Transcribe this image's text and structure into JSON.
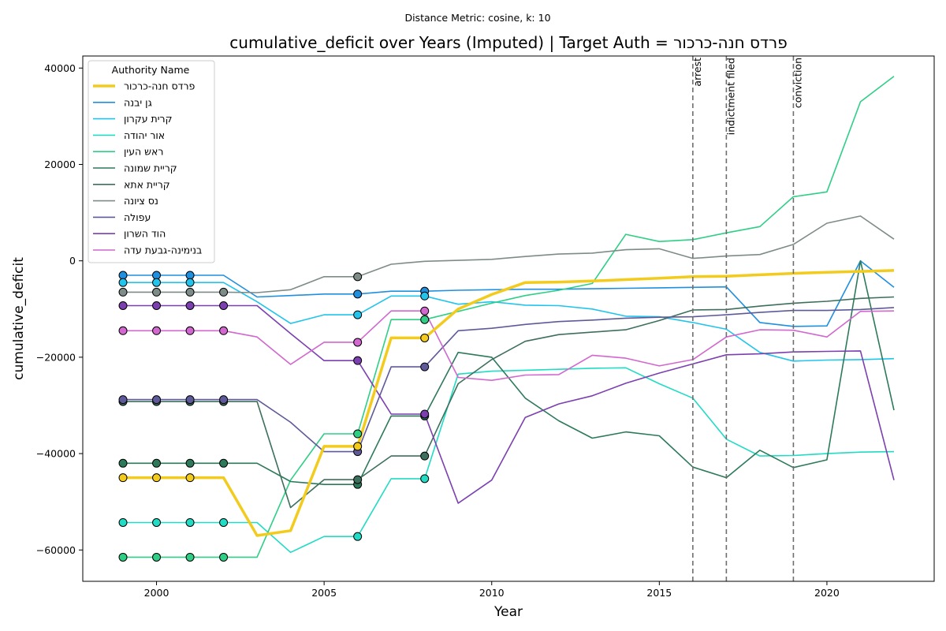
{
  "chart_data": {
    "type": "line",
    "suptitle": "Distance Metric: cosine, k: 10",
    "title": "cumulative_deficit over Years (Imputed) | Target Auth = פרדס חנה-כרכור",
    "xlabel": "Year",
    "ylabel": "cumulative_deficit",
    "xlim": [
      1997.8,
      2023.2
    ],
    "ylim": [
      -66500,
      42500
    ],
    "xticks": [
      2000,
      2005,
      2010,
      2015,
      2020
    ],
    "yticks": [
      -60000,
      -40000,
      -20000,
      0,
      20000,
      40000
    ],
    "legend_title": "Authority Name",
    "legend_placement": "top-left",
    "grid": false,
    "events": [
      {
        "x": 2016,
        "label": "arrest"
      },
      {
        "x": 2017,
        "label": "indictment filed"
      },
      {
        "x": 2019,
        "label": "conviction"
      }
    ],
    "x": [
      1999,
      2000,
      2001,
      2002,
      2003,
      2004,
      2005,
      2006,
      2007,
      2008,
      2009,
      2010,
      2011,
      2012,
      2013,
      2014,
      2015,
      2016,
      2017,
      2018,
      2019,
      2020,
      2021,
      2022
    ],
    "series": [
      {
        "name": "פרדס חנה-כרכור",
        "color": "#f2cb1d",
        "target": true,
        "values": [
          -45000,
          -45000,
          -45000,
          -45000,
          -57000,
          -56000,
          -38500,
          -38500,
          -16000,
          -16000,
          -10000,
          -7000,
          -4500,
          -4400,
          -4200,
          -3900,
          -3600,
          -3300,
          -3200,
          -2900,
          -2600,
          -2400,
          -2200,
          -2000
        ],
        "imputed": [
          1999,
          2000,
          2001,
          2006,
          2008
        ]
      },
      {
        "name": "גן יבנה",
        "color": "#1f8fe0",
        "values": [
          -3000,
          -3000,
          -3000,
          -3000,
          -7500,
          -7200,
          -6900,
          -6900,
          -6300,
          -6300,
          -6100,
          -6000,
          -5900,
          -5900,
          -5800,
          -5700,
          -5600,
          -5500,
          -5400,
          -12800,
          -13600,
          -13500,
          0,
          -5500
        ],
        "imputed": [
          1999,
          2000,
          2001,
          2006,
          2008
        ]
      },
      {
        "name": "קרית עקרון",
        "color": "#22c4ec",
        "values": [
          -4500,
          -4500,
          -4500,
          -4500,
          -8500,
          -13000,
          -11200,
          -11200,
          -7300,
          -7300,
          -9000,
          -8500,
          -9200,
          -9300,
          -10000,
          -11500,
          -11600,
          -12800,
          -14200,
          -19000,
          -20800,
          -20600,
          -20500,
          -20300
        ],
        "imputed": [
          1999,
          2000,
          2001,
          2006,
          2008
        ]
      },
      {
        "name": "אור יהודה",
        "color": "#20dcc4",
        "values": [
          -54300,
          -54300,
          -54300,
          -54300,
          -54300,
          -60500,
          -57200,
          -57200,
          -45200,
          -45200,
          -23500,
          -22900,
          -22700,
          -22500,
          -22300,
          -22200,
          -25500,
          -28500,
          -37000,
          -40500,
          -40400,
          -40000,
          -39700,
          -39600
        ],
        "imputed": [
          1999,
          2000,
          2001,
          2002,
          2006,
          2008
        ]
      },
      {
        "name": "ראש העין",
        "color": "#2ecf85",
        "values": [
          -61500,
          -61500,
          -61500,
          -61500,
          -61500,
          -45500,
          -35900,
          -35900,
          -12200,
          -12200,
          -10500,
          -8800,
          -7200,
          -6100,
          -4700,
          5500,
          4000,
          4400,
          5800,
          7100,
          13300,
          14300,
          33000,
          38300
        ],
        "imputed": [
          1999,
          2000,
          2001,
          2002,
          2006,
          2008
        ]
      },
      {
        "name": "קריית שמונה",
        "color": "#2d7a5b",
        "values": [
          -42000,
          -42000,
          -42000,
          -42000,
          -42000,
          -45800,
          -46400,
          -46400,
          -32200,
          -32200,
          -19000,
          -20000,
          -28500,
          -33200,
          -36800,
          -35500,
          -36300,
          -42800,
          -45000,
          -39300,
          -42900,
          -41300,
          0,
          -31000
        ],
        "imputed": [
          1999,
          2000,
          2001,
          2002,
          2006,
          2008
        ]
      },
      {
        "name": "קריית אתא",
        "color": "#3e6f5c",
        "values": [
          -29200,
          -29200,
          -29200,
          -29200,
          -29200,
          -51200,
          -45400,
          -45400,
          -40500,
          -40500,
          -25500,
          -20500,
          -16700,
          -15300,
          -14800,
          -14300,
          -12400,
          -10200,
          -10100,
          -9400,
          -8800,
          -8400,
          -7800,
          -7500
        ],
        "imputed": [
          1999,
          2000,
          2001,
          2002,
          2006,
          2008
        ]
      },
      {
        "name": "נס ציונה",
        "color": "#7e8c87",
        "values": [
          -6500,
          -6500,
          -6500,
          -6500,
          -6600,
          -6000,
          -3300,
          -3300,
          -700,
          -100,
          100,
          300,
          900,
          1400,
          1600,
          2300,
          2500,
          500,
          1000,
          1300,
          3400,
          7800,
          9300,
          4500
        ],
        "imputed": [
          1999,
          2000,
          2001,
          2002,
          2006
        ]
      },
      {
        "name": "עפולה",
        "color": "#5e5a9a",
        "values": [
          -28800,
          -28800,
          -28800,
          -28800,
          -28800,
          -33500,
          -39600,
          -39600,
          -22000,
          -22000,
          -14500,
          -14000,
          -13200,
          -12600,
          -12300,
          -11900,
          -11700,
          -11600,
          -11200,
          -10700,
          -10300,
          -10300,
          -10100,
          -9700
        ],
        "imputed": [
          1999,
          2000,
          2001,
          2002,
          2006,
          2008
        ]
      },
      {
        "name": "הוד השרון",
        "color": "#7b3fb0",
        "values": [
          -9300,
          -9300,
          -9300,
          -9300,
          -9300,
          -15100,
          -20700,
          -20700,
          -31800,
          -31800,
          -50300,
          -45500,
          -32500,
          -29700,
          -28000,
          -25400,
          -23300,
          -21400,
          -19500,
          -19300,
          -18900,
          -18800,
          -18700,
          -45500
        ],
        "imputed": [
          1999,
          2000,
          2001,
          2002,
          2006,
          2008
        ]
      },
      {
        "name": "בנימינה-גבעת עדה",
        "color": "#d167cf",
        "values": [
          -14500,
          -14500,
          -14500,
          -14500,
          -15800,
          -21500,
          -16900,
          -16900,
          -10400,
          -10400,
          -24200,
          -24800,
          -23700,
          -23600,
          -19600,
          -20200,
          -21800,
          -20500,
          -15800,
          -14300,
          -14400,
          -15800,
          -10500,
          -10400
        ],
        "imputed": [
          1999,
          2000,
          2001,
          2002,
          2006,
          2008
        ]
      }
    ]
  }
}
